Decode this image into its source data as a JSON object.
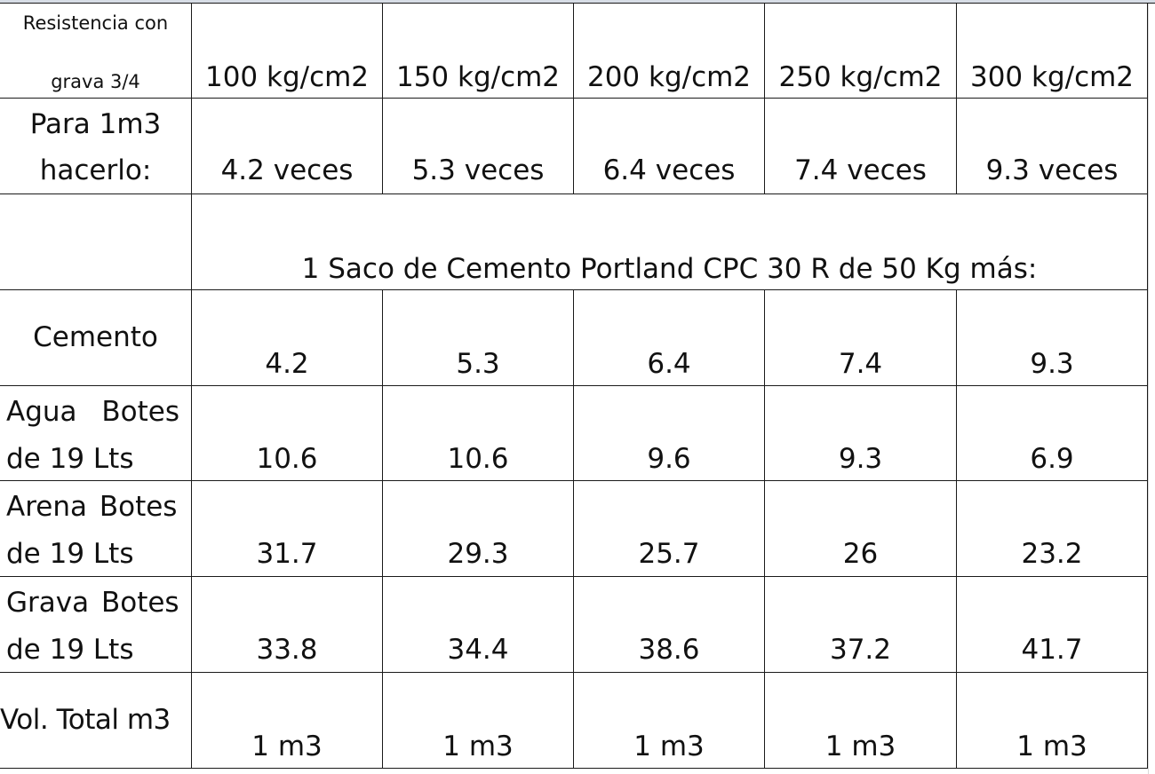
{
  "header": {
    "label_line1": "Resistencia con",
    "label_line2": "grava 3/4",
    "strengths": [
      "100 kg/cm2",
      "150 kg/cm2",
      "200 kg/cm2",
      "250 kg/cm2",
      "300 kg/cm2"
    ]
  },
  "rows": {
    "para": {
      "label_line1": "Para 1m3",
      "label_line2": "hacerlo:",
      "values": [
        "4.2 veces",
        "5.3 veces",
        "6.4 veces",
        "7.4 veces",
        "9.3 veces"
      ]
    },
    "merged_note": "1 Saco de Cemento Portland CPC 30 R de 50 Kg más:",
    "cemento": {
      "label": "Cemento",
      "values": [
        "4.2",
        "5.3",
        "6.4",
        "7.4",
        "9.3"
      ]
    },
    "agua": {
      "label_line1": "Agua Botes",
      "label_line2": "de 19 Lts",
      "values": [
        "10.6",
        "10.6",
        "9.6",
        "9.3",
        "6.9"
      ]
    },
    "arena": {
      "label_line1": "Arena Botes",
      "label_line2": "de 19 Lts",
      "values": [
        "31.7",
        "29.3",
        "25.7",
        "26",
        "23.2"
      ]
    },
    "grava": {
      "label_line1": "Grava Botes",
      "label_line2": "de 19 Lts",
      "values": [
        "33.8",
        "34.4",
        "38.6",
        "37.2",
        "41.7"
      ]
    },
    "volumen": {
      "label": "Vol. Total m3",
      "values": [
        "1 m3",
        "1 m3",
        "1 m3",
        "1 m3",
        "1 m3"
      ]
    }
  }
}
